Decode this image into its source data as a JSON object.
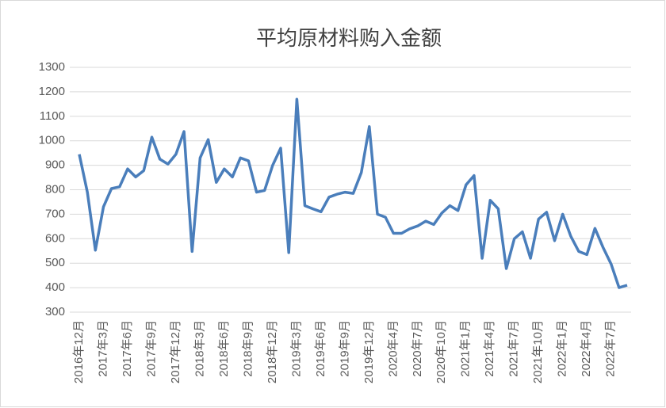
{
  "chart_data": {
    "type": "line",
    "title": "平均原材料购入金额",
    "categories": [
      "2016年12月",
      null,
      null,
      "2017年3月",
      null,
      null,
      "2017年6月",
      null,
      null,
      "2017年9月",
      null,
      null,
      "2017年12月",
      null,
      null,
      "2018年3月",
      null,
      null,
      "2018年6月",
      null,
      null,
      "2018年9月",
      null,
      null,
      "2018年12月",
      null,
      null,
      "2019年3月",
      null,
      null,
      "2019年6月",
      null,
      null,
      "2019年9月",
      null,
      null,
      "2019年12月",
      null,
      null,
      "2020年4月",
      null,
      null,
      "2020年7月",
      null,
      null,
      "2020年10月",
      null,
      null,
      "2021年1月",
      null,
      null,
      "2021年4月",
      null,
      null,
      "2021年7月",
      null,
      null,
      "2021年10月",
      null,
      null,
      "2022年1月",
      null,
      null,
      "2022年4月",
      null,
      null,
      "2022年7月",
      null,
      null
    ],
    "values": [
      945,
      790,
      553,
      730,
      805,
      812,
      885,
      852,
      878,
      1015,
      925,
      905,
      945,
      1038,
      548,
      930,
      1005,
      830,
      885,
      852,
      930,
      918,
      790,
      797,
      900,
      970,
      543,
      1170,
      735,
      722,
      710,
      770,
      782,
      790,
      785,
      870,
      1058,
      700,
      688,
      622,
      622,
      640,
      652,
      672,
      658,
      705,
      735,
      715,
      820,
      858,
      520,
      757,
      722,
      478,
      600,
      628,
      520,
      680,
      708,
      592,
      700,
      610,
      548,
      535,
      642,
      565,
      497,
      400,
      410
    ],
    "color": "#4a7ebb",
    "ylim": [
      300,
      1300
    ],
    "yticks": [
      300,
      400,
      500,
      600,
      700,
      800,
      900,
      1000,
      1100,
      1200,
      1300
    ],
    "grid": true
  }
}
